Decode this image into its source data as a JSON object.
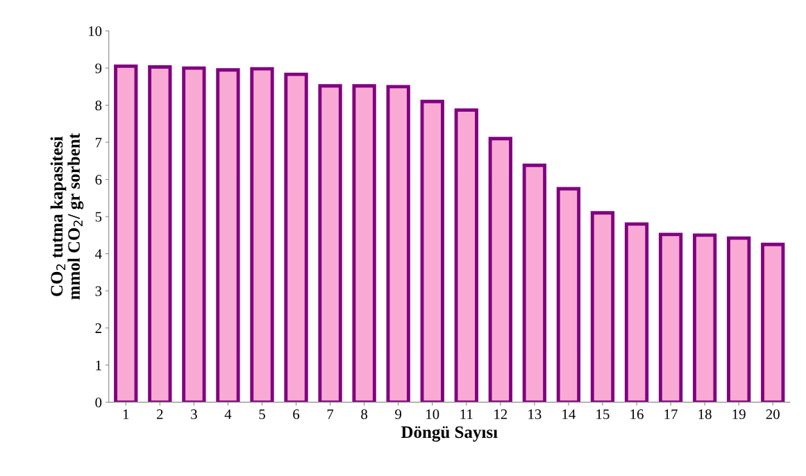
{
  "chart_data": {
    "type": "bar",
    "xlabel": "Döngü Sayısı",
    "ylabel": "CO$_{2}$ tutma kapasitesi\nmmol CO$_{2}$/ gr sorbent",
    "categories": [
      "1",
      "2",
      "3",
      "4",
      "5",
      "6",
      "7",
      "8",
      "9",
      "10",
      "11",
      "12",
      "13",
      "14",
      "15",
      "16",
      "17",
      "18",
      "19",
      "20"
    ],
    "values": [
      9.05,
      9.03,
      9.0,
      8.95,
      8.98,
      8.83,
      8.52,
      8.52,
      8.5,
      8.1,
      7.87,
      7.1,
      6.38,
      5.75,
      5.1,
      4.8,
      4.52,
      4.5,
      4.42,
      4.25
    ],
    "color": "#f8aad4",
    "ylim": [
      0,
      10
    ],
    "yticks": [
      0,
      1,
      2,
      3,
      4,
      5,
      6,
      7,
      8,
      9,
      10
    ],
    "grid": false,
    "legend": false
  }
}
